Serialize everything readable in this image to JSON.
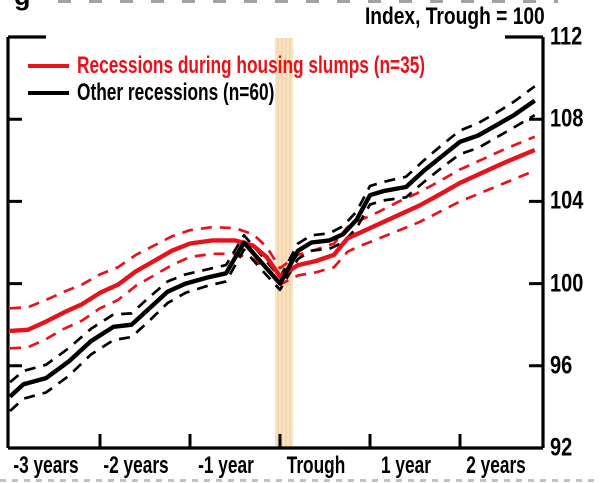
{
  "figure": {
    "title_right": "Index, Trough = 100",
    "cut_text_fragment": "g"
  },
  "legend": {
    "items": [
      {
        "label": "Recessions during housing slumps (n=35)",
        "color": "#e8121b"
      },
      {
        "label": "Other recessions (n=60)",
        "color": "#000000"
      }
    ]
  },
  "colors": {
    "red": "#e8121b",
    "black": "#000000",
    "trough_band": "#f9e2c2",
    "trough_band_stripe": "#f4d8b2",
    "frame": "#000000"
  },
  "chart_data": {
    "type": "line",
    "title": "Index, Trough = 100",
    "xlabel": "",
    "ylabel": "",
    "ylim": [
      92,
      112
    ],
    "xlim_years": [
      -3,
      2.95
    ],
    "grid": false,
    "y_axis_side": "right",
    "legend_position": "top-left-inside",
    "y_ticks": [
      92,
      96,
      100,
      104,
      108,
      112
    ],
    "x_ticks": [
      {
        "t": -3,
        "label": "-3 years"
      },
      {
        "t": -2,
        "label": "-2 years"
      },
      {
        "t": -1,
        "label": "-1 year"
      },
      {
        "t": 0,
        "label": "Trough"
      },
      {
        "t": 1,
        "label": "1 year"
      },
      {
        "t": 2,
        "label": "2 years"
      }
    ],
    "trough_band": {
      "t_center": 0,
      "width_years": 0.2
    },
    "series": [
      {
        "name": "housing-slump-upper-band",
        "legend": null,
        "color": "#e8121b",
        "style": "dashed",
        "points": [
          [
            -3,
            98.8
          ],
          [
            -2.8,
            98.85
          ],
          [
            -2.6,
            99.2
          ],
          [
            -2.4,
            99.6
          ],
          [
            -2.2,
            99.95
          ],
          [
            -2.0,
            100.45
          ],
          [
            -1.8,
            100.8
          ],
          [
            -1.6,
            101.4
          ],
          [
            -1.4,
            101.85
          ],
          [
            -1.2,
            102.3
          ],
          [
            -1.0,
            102.6
          ],
          [
            -0.75,
            102.75
          ],
          [
            -0.5,
            102.7
          ],
          [
            -0.3,
            102.4
          ],
          [
            -0.15,
            101.8
          ],
          [
            0,
            100.75
          ],
          [
            0.2,
            101.4
          ],
          [
            0.4,
            101.65
          ],
          [
            0.6,
            101.95
          ],
          [
            0.75,
            102.75
          ],
          [
            0.9,
            103.1
          ],
          [
            1.1,
            103.5
          ],
          [
            1.3,
            103.95
          ],
          [
            1.55,
            104.45
          ],
          [
            1.8,
            105.05
          ],
          [
            2.0,
            105.55
          ],
          [
            2.25,
            106.05
          ],
          [
            2.5,
            106.55
          ],
          [
            2.83,
            107.15
          ]
        ]
      },
      {
        "name": "housing-slump-lower-band",
        "legend": null,
        "color": "#e8121b",
        "style": "dashed",
        "points": [
          [
            -3,
            96.85
          ],
          [
            -2.8,
            96.9
          ],
          [
            -2.6,
            97.3
          ],
          [
            -2.4,
            97.8
          ],
          [
            -2.2,
            98.2
          ],
          [
            -2.0,
            98.8
          ],
          [
            -1.8,
            99.2
          ],
          [
            -1.6,
            99.9
          ],
          [
            -1.4,
            100.4
          ],
          [
            -1.2,
            100.9
          ],
          [
            -1.0,
            101.3
          ],
          [
            -0.75,
            101.45
          ],
          [
            -0.5,
            101.45
          ],
          [
            -0.3,
            101.2
          ],
          [
            -0.15,
            100.7
          ],
          [
            0,
            99.95
          ],
          [
            0.2,
            100.4
          ],
          [
            0.4,
            100.55
          ],
          [
            0.6,
            100.8
          ],
          [
            0.75,
            101.55
          ],
          [
            0.9,
            101.85
          ],
          [
            1.1,
            102.2
          ],
          [
            1.3,
            102.55
          ],
          [
            1.55,
            103.0
          ],
          [
            1.8,
            103.55
          ],
          [
            2.0,
            104.0
          ],
          [
            2.25,
            104.45
          ],
          [
            2.5,
            104.9
          ],
          [
            2.83,
            105.5
          ]
        ]
      },
      {
        "name": "other-recessions-upper-band",
        "legend": null,
        "color": "#000000",
        "style": "dashed",
        "points": [
          [
            -3,
            95.2
          ],
          [
            -2.85,
            95.75
          ],
          [
            -2.6,
            96.05
          ],
          [
            -2.35,
            96.85
          ],
          [
            -2.1,
            97.8
          ],
          [
            -1.85,
            98.5
          ],
          [
            -1.65,
            98.55
          ],
          [
            -1.45,
            99.35
          ],
          [
            -1.25,
            100.1
          ],
          [
            -1.05,
            100.45
          ],
          [
            -0.8,
            100.7
          ],
          [
            -0.6,
            100.9
          ],
          [
            -0.4,
            102.35
          ],
          [
            -0.2,
            101.35
          ],
          [
            0,
            100.3
          ],
          [
            0.2,
            101.95
          ],
          [
            0.35,
            102.35
          ],
          [
            0.55,
            102.45
          ],
          [
            0.7,
            102.8
          ],
          [
            0.85,
            103.5
          ],
          [
            1.0,
            104.75
          ],
          [
            1.15,
            104.95
          ],
          [
            1.4,
            105.2
          ],
          [
            1.6,
            106.0
          ],
          [
            1.8,
            106.75
          ],
          [
            2.0,
            107.45
          ],
          [
            2.2,
            107.8
          ],
          [
            2.4,
            108.3
          ],
          [
            2.6,
            108.85
          ],
          [
            2.83,
            109.6
          ]
        ]
      },
      {
        "name": "other-recessions-lower-band",
        "legend": null,
        "color": "#000000",
        "style": "dashed",
        "points": [
          [
            -3,
            93.8
          ],
          [
            -2.85,
            94.4
          ],
          [
            -2.6,
            94.7
          ],
          [
            -2.35,
            95.5
          ],
          [
            -2.1,
            96.55
          ],
          [
            -1.85,
            97.25
          ],
          [
            -1.65,
            97.4
          ],
          [
            -1.45,
            98.2
          ],
          [
            -1.25,
            99.05
          ],
          [
            -1.05,
            99.55
          ],
          [
            -0.8,
            99.9
          ],
          [
            -0.6,
            100.1
          ],
          [
            -0.4,
            101.65
          ],
          [
            -0.2,
            100.65
          ],
          [
            0,
            99.7
          ],
          [
            0.2,
            101.2
          ],
          [
            0.35,
            101.6
          ],
          [
            0.55,
            101.7
          ],
          [
            0.7,
            102.0
          ],
          [
            0.85,
            102.7
          ],
          [
            1.0,
            103.85
          ],
          [
            1.15,
            104.05
          ],
          [
            1.4,
            104.2
          ],
          [
            1.6,
            104.95
          ],
          [
            1.8,
            105.65
          ],
          [
            2.0,
            106.3
          ],
          [
            2.2,
            106.6
          ],
          [
            2.4,
            107.1
          ],
          [
            2.6,
            107.6
          ],
          [
            2.83,
            108.2
          ]
        ]
      },
      {
        "name": "housing-slump-mean",
        "legend": "Recessions during housing slumps (n=35)",
        "color": "#e8121b",
        "style": "solid",
        "points": [
          [
            -3,
            97.7
          ],
          [
            -2.8,
            97.75
          ],
          [
            -2.6,
            98.15
          ],
          [
            -2.4,
            98.6
          ],
          [
            -2.2,
            99.0
          ],
          [
            -2.0,
            99.55
          ],
          [
            -1.8,
            99.95
          ],
          [
            -1.6,
            100.6
          ],
          [
            -1.4,
            101.1
          ],
          [
            -1.2,
            101.6
          ],
          [
            -1.0,
            101.95
          ],
          [
            -0.75,
            102.1
          ],
          [
            -0.5,
            102.1
          ],
          [
            -0.3,
            101.85
          ],
          [
            -0.15,
            101.3
          ],
          [
            0,
            100.35
          ],
          [
            0.2,
            100.9
          ],
          [
            0.4,
            101.1
          ],
          [
            0.6,
            101.4
          ],
          [
            0.75,
            102.2
          ],
          [
            0.9,
            102.5
          ],
          [
            1.1,
            102.9
          ],
          [
            1.3,
            103.3
          ],
          [
            1.55,
            103.8
          ],
          [
            1.8,
            104.4
          ],
          [
            2.0,
            104.9
          ],
          [
            2.25,
            105.4
          ],
          [
            2.5,
            105.9
          ],
          [
            2.83,
            106.5
          ]
        ]
      },
      {
        "name": "other-recessions-mean",
        "legend": "Other recessions (n=60)",
        "color": "#000000",
        "style": "solid",
        "points": [
          [
            -3,
            94.5
          ],
          [
            -2.85,
            95.1
          ],
          [
            -2.6,
            95.4
          ],
          [
            -2.35,
            96.2
          ],
          [
            -2.1,
            97.2
          ],
          [
            -1.85,
            97.9
          ],
          [
            -1.65,
            98.0
          ],
          [
            -1.45,
            98.8
          ],
          [
            -1.25,
            99.6
          ],
          [
            -1.05,
            100.0
          ],
          [
            -0.8,
            100.3
          ],
          [
            -0.6,
            100.5
          ],
          [
            -0.4,
            102.0
          ],
          [
            -0.2,
            101.0
          ],
          [
            0,
            100.0
          ],
          [
            0.2,
            101.6
          ],
          [
            0.35,
            102.0
          ],
          [
            0.55,
            102.1
          ],
          [
            0.7,
            102.4
          ],
          [
            0.85,
            103.1
          ],
          [
            1.0,
            104.3
          ],
          [
            1.15,
            104.5
          ],
          [
            1.4,
            104.7
          ],
          [
            1.6,
            105.5
          ],
          [
            1.8,
            106.2
          ],
          [
            2.0,
            106.9
          ],
          [
            2.2,
            107.2
          ],
          [
            2.4,
            107.7
          ],
          [
            2.6,
            108.2
          ],
          [
            2.83,
            108.9
          ]
        ]
      }
    ]
  }
}
